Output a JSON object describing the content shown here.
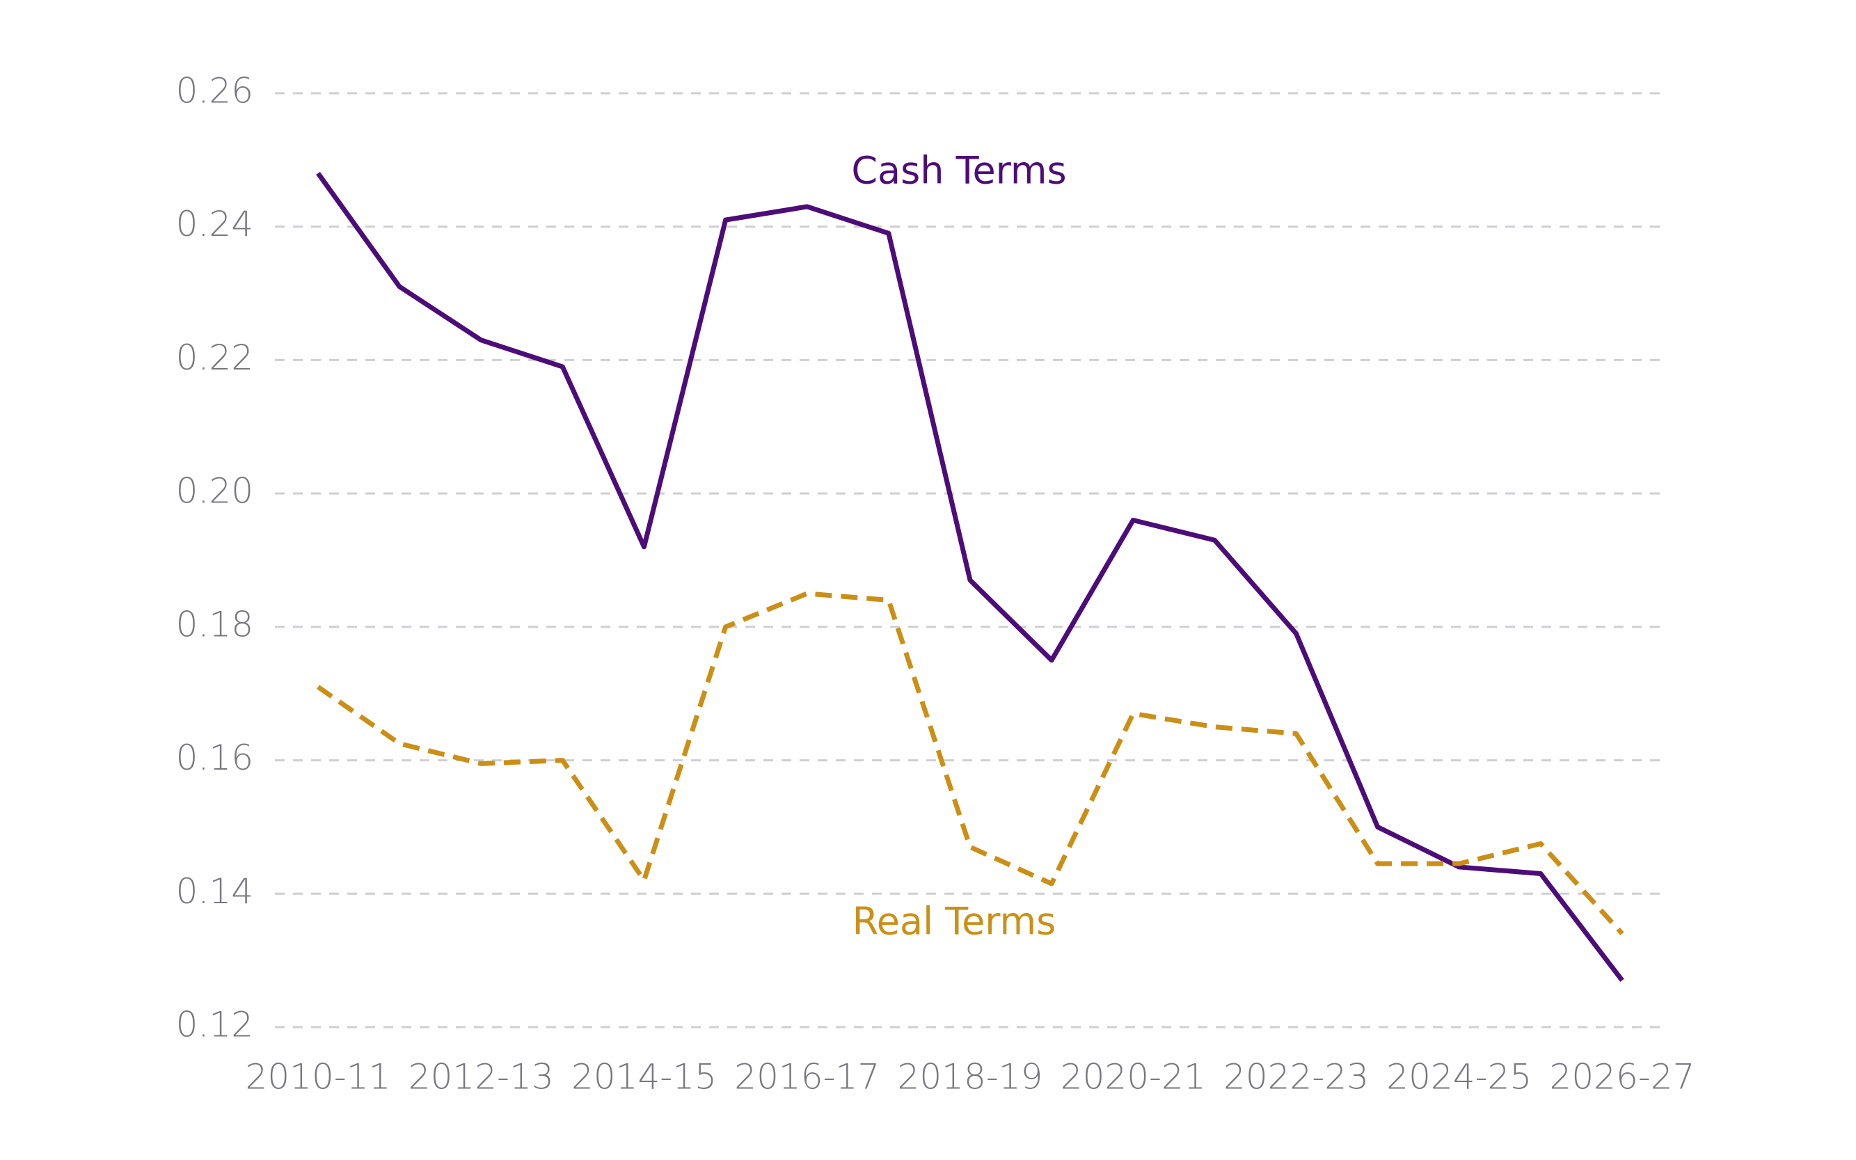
{
  "chart_data": {
    "type": "line",
    "categories": [
      "2010-11",
      null,
      "2012-13",
      null,
      "2014-15",
      null,
      "2016-17",
      null,
      "2018-19",
      null,
      "2020-21",
      null,
      "2022-23",
      null,
      "2024-25",
      null,
      "2026-27"
    ],
    "series": [
      {
        "name": "Cash Terms",
        "color": "#4d0d78",
        "dashed": false,
        "values": [
          0.248,
          0.231,
          0.223,
          0.219,
          0.192,
          0.241,
          0.243,
          0.239,
          0.187,
          0.175,
          0.196,
          0.193,
          0.179,
          0.15,
          0.144,
          0.143,
          0.127
        ]
      },
      {
        "name": "Real Terms",
        "color": "#cc8f16",
        "dashed": true,
        "values": [
          0.171,
          0.1625,
          0.1595,
          0.16,
          0.142,
          0.18,
          0.185,
          0.184,
          0.147,
          0.1415,
          0.167,
          0.165,
          0.164,
          0.1445,
          0.1445,
          0.1475,
          0.134
        ]
      }
    ],
    "ylim": [
      0.12,
      0.26
    ],
    "yticks": [
      0.12,
      0.14,
      0.16,
      0.18,
      {
        "value": 0.2,
        "label": "0.20"
      },
      0.22,
      0.24,
      0.26
    ],
    "grid": true
  }
}
